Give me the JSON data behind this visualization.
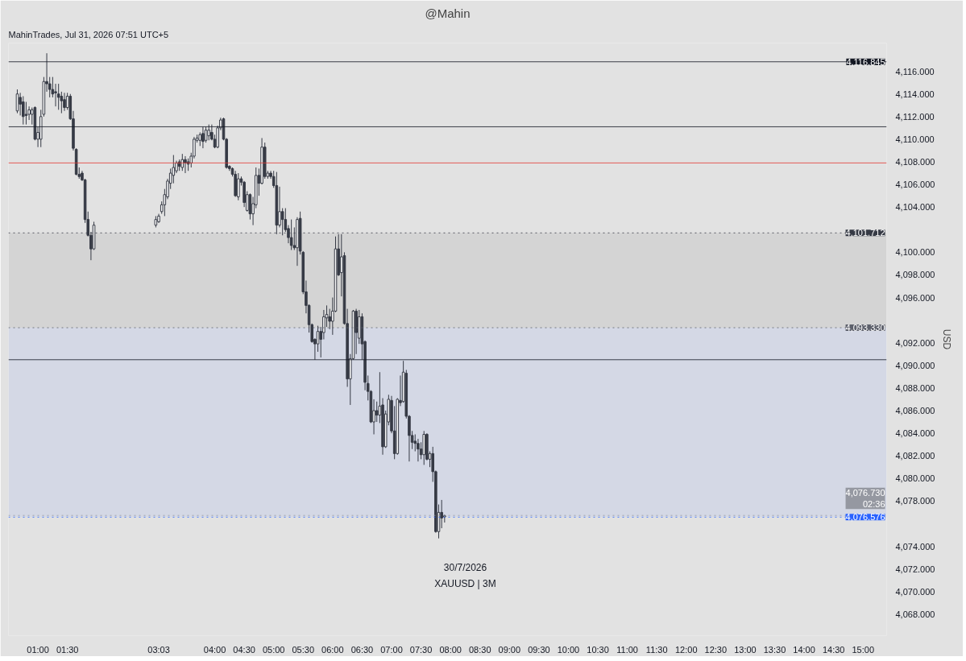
{
  "chart_data": {
    "type": "candlestick",
    "title": "@Mahin",
    "ylabel": "USD",
    "annotations": [
      "MahinTrades, Jul 31, 2026 07:51 UTC+5",
      "30/7/2026",
      "XAUUSD | 3M"
    ],
    "x": [
      0.65,
      0.7,
      0.75,
      0.8,
      0.85,
      0.9,
      0.95,
      1.0,
      1.05,
      1.1,
      1.15,
      1.2,
      1.25,
      1.3,
      1.35,
      1.4,
      1.45,
      1.5,
      1.55,
      1.6,
      1.65,
      1.7,
      1.75,
      1.8,
      1.85,
      1.9,
      1.95,
      3.0,
      3.05,
      3.1,
      3.15,
      3.2,
      3.25,
      3.3,
      3.35,
      3.4,
      3.45,
      3.5,
      3.55,
      3.6,
      3.65,
      3.7,
      3.75,
      3.8,
      3.85,
      3.9,
      3.95,
      4.0,
      4.05,
      4.1,
      4.15,
      4.2,
      4.25,
      4.3,
      4.35,
      4.4,
      4.45,
      4.5,
      4.55,
      4.6,
      4.65,
      4.7,
      4.75,
      4.8,
      4.85,
      4.9,
      4.95,
      5.0,
      5.05,
      5.1,
      5.15,
      5.2,
      5.25,
      5.3,
      5.35,
      5.4,
      5.45,
      5.5,
      5.55,
      5.6,
      5.65,
      5.7,
      5.75,
      5.8,
      5.85,
      5.9,
      5.95,
      6.0,
      6.05,
      6.1,
      6.15,
      6.2,
      6.25,
      6.3,
      6.35,
      6.4,
      6.45,
      6.5,
      6.55,
      6.6,
      6.65,
      6.7,
      6.75,
      6.8,
      6.85,
      6.9,
      6.95,
      7.0,
      7.05,
      7.1,
      7.15,
      7.2,
      7.25,
      7.3,
      7.35,
      7.4,
      7.45,
      7.5,
      7.55,
      7.6,
      7.65,
      7.7,
      7.75,
      7.8,
      7.85,
      7.9
    ],
    "ohlc": [
      [
        4112.5,
        4114.4,
        4112.3,
        4114.0
      ],
      [
        4113.7,
        4114.1,
        4112.1,
        4113.1
      ],
      [
        4113.3,
        4113.8,
        4111.3,
        4112.0
      ],
      [
        4112.2,
        4113.3,
        4111.3,
        4112.1
      ],
      [
        4112.2,
        4112.9,
        4111.7,
        4112.6
      ],
      [
        4112.2,
        4112.8,
        4111.3,
        4112.6
      ],
      [
        4112.8,
        4112.9,
        4109.9,
        4110.0
      ],
      [
        4110.0,
        4111.1,
        4109.3,
        4110.6
      ],
      [
        4110.0,
        4112.6,
        4109.3,
        4112.0
      ],
      [
        4112.2,
        4115.5,
        4112.0,
        4115.1
      ],
      [
        4115.1,
        4117.6,
        4114.2,
        4114.9
      ],
      [
        4114.9,
        4115.5,
        4113.7,
        4114.4
      ],
      [
        4114.4,
        4115.5,
        4113.7,
        4114.0
      ],
      [
        4114.2,
        4114.9,
        4112.9,
        4114.1
      ],
      [
        4114.0,
        4114.9,
        4112.6,
        4113.7
      ],
      [
        4113.8,
        4114.2,
        4112.3,
        4113.4
      ],
      [
        4113.5,
        4114.1,
        4112.5,
        4112.8
      ],
      [
        4112.8,
        4114.1,
        4112.6,
        4113.8
      ],
      [
        4113.8,
        4114.0,
        4111.7,
        4111.8
      ],
      [
        4111.8,
        4112.5,
        4109.0,
        4109.2
      ],
      [
        4109.1,
        4109.2,
        4106.8,
        4106.9
      ],
      [
        4106.9,
        4107.5,
        4106.5,
        4106.7
      ],
      [
        4107.0,
        4107.2,
        4106.3,
        4106.4
      ],
      [
        4106.4,
        4106.5,
        4102.6,
        4102.9
      ],
      [
        4102.9,
        4103.6,
        4101.4,
        4101.5
      ],
      [
        4101.5,
        4101.8,
        4099.3,
        4100.3
      ],
      [
        4100.3,
        4102.7,
        4100.2,
        4102.4
      ],
      [
        4102.4,
        4103.2,
        4102.2,
        4102.9
      ],
      [
        4102.7,
        4103.4,
        4102.6,
        4103.2
      ],
      [
        4103.6,
        4104.5,
        4103.4,
        4104.2
      ],
      [
        4104.2,
        4105.6,
        4103.2,
        4105.1
      ],
      [
        4104.9,
        4106.5,
        4104.7,
        4106.3
      ],
      [
        4106.1,
        4107.4,
        4105.6,
        4107.0
      ],
      [
        4106.8,
        4108.6,
        4106.1,
        4107.5
      ],
      [
        4107.2,
        4108.1,
        4107.0,
        4107.9
      ],
      [
        4108.0,
        4108.2,
        4107.2,
        4107.6
      ],
      [
        4107.5,
        4108.7,
        4107.2,
        4108.2
      ],
      [
        4108.2,
        4108.5,
        4107.0,
        4107.9
      ],
      [
        4108.0,
        4108.3,
        4107.2,
        4107.8
      ],
      [
        4107.9,
        4108.8,
        4107.5,
        4108.5
      ],
      [
        4108.5,
        4110.2,
        4108.3,
        4110.0
      ],
      [
        4109.9,
        4110.4,
        4109.7,
        4110.1
      ],
      [
        4109.9,
        4110.6,
        4109.4,
        4110.4
      ],
      [
        4110.5,
        4111.1,
        4109.2,
        4109.8
      ],
      [
        4109.9,
        4111.1,
        4109.7,
        4110.8
      ],
      [
        4110.3,
        4111.3,
        4109.9,
        4110.8
      ],
      [
        4110.6,
        4111.3,
        4109.9,
        4110.0
      ],
      [
        4110.0,
        4110.4,
        4109.2,
        4109.3
      ],
      [
        4109.3,
        4111.2,
        4109.2,
        4111.0
      ],
      [
        4111.0,
        4111.9,
        4110.8,
        4111.7
      ],
      [
        4111.8,
        4111.9,
        4109.9,
        4110.0
      ],
      [
        4110.0,
        4110.1,
        4107.4,
        4107.5
      ],
      [
        4107.6,
        4107.7,
        4107.2,
        4107.4
      ],
      [
        4107.4,
        4107.5,
        4106.7,
        4106.9
      ],
      [
        4106.9,
        4107.2,
        4104.9,
        4105.0
      ],
      [
        4104.9,
        4107.0,
        4104.6,
        4106.5
      ],
      [
        4106.5,
        4106.7,
        4105.9,
        4106.2
      ],
      [
        4106.2,
        4106.3,
        4104.0,
        4104.4
      ],
      [
        4103.7,
        4105.4,
        4103.6,
        4105.1
      ],
      [
        4105.1,
        4105.2,
        4102.9,
        4103.4
      ],
      [
        4103.4,
        4104.9,
        4102.4,
        4104.3
      ],
      [
        4104.2,
        4107.5,
        4103.9,
        4106.8
      ],
      [
        4106.8,
        4107.4,
        4105.0,
        4106.1
      ],
      [
        4106.1,
        4110.1,
        4106.0,
        4109.3
      ],
      [
        4109.3,
        4109.7,
        4106.5,
        4106.7
      ],
      [
        4106.7,
        4107.2,
        4106.5,
        4107.0
      ],
      [
        4107.0,
        4107.2,
        4106.5,
        4106.7
      ],
      [
        4106.7,
        4107.2,
        4105.7,
        4105.9
      ],
      [
        4105.9,
        4107.1,
        4101.6,
        4102.4
      ],
      [
        4102.4,
        4105.8,
        4102.2,
        4103.6
      ],
      [
        4103.6,
        4103.9,
        4101.5,
        4102.9
      ],
      [
        4102.9,
        4103.9,
        4101.8,
        4102.0
      ],
      [
        4102.1,
        4102.4,
        4100.8,
        4101.3
      ],
      [
        4101.3,
        4102.9,
        4100.2,
        4100.6
      ],
      [
        4100.6,
        4102.2,
        4100.2,
        4100.4
      ],
      [
        4100.4,
        4103.1,
        4098.8,
        4102.9
      ],
      [
        4103.0,
        4103.6,
        4099.8,
        4100.1
      ],
      [
        4100.0,
        4100.1,
        4096.3,
        4096.5
      ],
      [
        4096.5,
        4097.5,
        4094.6,
        4095.3
      ],
      [
        4095.3,
        4095.4,
        4092.9,
        4093.6
      ],
      [
        4093.6,
        4093.7,
        4092.0,
        4092.1
      ],
      [
        4092.3,
        4092.4,
        4090.5,
        4091.9
      ],
      [
        4091.9,
        4093.5,
        4091.2,
        4093.0
      ],
      [
        4093.0,
        4093.4,
        4090.7,
        4092.3
      ],
      [
        4092.9,
        4094.9,
        4092.3,
        4094.3
      ],
      [
        4094.2,
        4095.3,
        4093.4,
        4094.5
      ],
      [
        4094.3,
        4095.0,
        4093.2,
        4093.9
      ],
      [
        4093.9,
        4096.0,
        4092.7,
        4094.8
      ],
      [
        4094.8,
        4101.4,
        4094.7,
        4100.3
      ],
      [
        4100.3,
        4101.6,
        4097.9,
        4098.0
      ],
      [
        4098.2,
        4101.6,
        4096.1,
        4099.6
      ],
      [
        4099.7,
        4100.0,
        4093.6,
        4093.7
      ],
      [
        4093.7,
        4095.0,
        4088.1,
        4088.8
      ],
      [
        4088.8,
        4091.0,
        4086.5,
        4090.6
      ],
      [
        4090.6,
        4094.9,
        4090.5,
        4094.8
      ],
      [
        4094.8,
        4095.0,
        4091.0,
        4092.9
      ],
      [
        4092.4,
        4094.9,
        4091.9,
        4094.3
      ],
      [
        4094.3,
        4094.6,
        4090.5,
        4091.9
      ],
      [
        4092.1,
        4092.2,
        4087.8,
        4088.5
      ],
      [
        4088.4,
        4089.1,
        4086.9,
        4087.7
      ],
      [
        4087.7,
        4087.8,
        4084.9,
        4085.0
      ],
      [
        4085.0,
        4087.0,
        4083.9,
        4086.0
      ],
      [
        4086.0,
        4086.8,
        4085.0,
        4085.6
      ],
      [
        4085.6,
        4089.4,
        4084.9,
        4086.4
      ],
      [
        4086.5,
        4087.1,
        4082.1,
        4082.8
      ],
      [
        4082.8,
        4086.0,
        4082.7,
        4085.7
      ],
      [
        4085.0,
        4087.4,
        4084.7,
        4087.0
      ],
      [
        4086.9,
        4087.3,
        4084.0,
        4084.2
      ],
      [
        4084.2,
        4086.4,
        4081.7,
        4082.2
      ],
      [
        4082.2,
        4087.1,
        4082.1,
        4087.0
      ],
      [
        4086.9,
        4089.1,
        4086.4,
        4086.7
      ],
      [
        4086.8,
        4090.4,
        4086.7,
        4089.4
      ],
      [
        4089.3,
        4089.6,
        4085.3,
        4085.5
      ],
      [
        4085.5,
        4085.6,
        4081.5,
        4083.8
      ],
      [
        4083.8,
        4084.2,
        4082.6,
        4083.2
      ],
      [
        4083.3,
        4083.9,
        4082.4,
        4083.1
      ],
      [
        4083.1,
        4083.5,
        4081.5,
        4082.6
      ],
      [
        4082.6,
        4083.2,
        4081.7,
        4082.1
      ],
      [
        4082.1,
        4084.2,
        4081.2,
        4083.9
      ],
      [
        4083.9,
        4084.0,
        4081.6,
        4081.7
      ],
      [
        4081.7,
        4082.4,
        4081.0,
        4082.2
      ],
      [
        4082.2,
        4082.8,
        4079.7,
        4080.6
      ],
      [
        4080.6,
        4080.7,
        4075.2,
        4075.3
      ],
      [
        4075.3,
        4077.7,
        4074.7,
        4077.0
      ],
      [
        4077.0,
        4078.1,
        4075.6,
        4076.5
      ],
      [
        4076.6,
        4076.8,
        4076.1,
        4076.7
      ]
    ],
    "xlim": [
      0.5,
      15.4
    ],
    "xticks": [
      {
        "value": 1,
        "label": "01:00"
      },
      {
        "value": 1.5,
        "label": "01:30"
      },
      {
        "value": 3.05,
        "label": "03:03"
      },
      {
        "value": 4,
        "label": "04:00"
      },
      {
        "value": 4.5,
        "label": "04:30"
      },
      {
        "value": 5,
        "label": "05:00"
      },
      {
        "value": 5.5,
        "label": "05:30"
      },
      {
        "value": 6,
        "label": "06:00"
      },
      {
        "value": 6.5,
        "label": "06:30"
      },
      {
        "value": 7,
        "label": "07:00"
      },
      {
        "value": 7.5,
        "label": "07:30"
      },
      {
        "value": 8,
        "label": "08:00"
      },
      {
        "value": 8.5,
        "label": "08:30"
      },
      {
        "value": 9,
        "label": "09:00"
      },
      {
        "value": 9.5,
        "label": "09:30"
      },
      {
        "value": 10,
        "label": "10:00"
      },
      {
        "value": 10.5,
        "label": "10:30"
      },
      {
        "value": 11,
        "label": "11:00"
      },
      {
        "value": 11.5,
        "label": "11:30"
      },
      {
        "value": 12,
        "label": "12:00"
      },
      {
        "value": 12.5,
        "label": "12:30"
      },
      {
        "value": 13,
        "label": "13:00"
      },
      {
        "value": 13.5,
        "label": "13:30"
      },
      {
        "value": 14,
        "label": "14:00"
      },
      {
        "value": 14.5,
        "label": "14:30"
      },
      {
        "value": 15,
        "label": "15:00"
      }
    ],
    "ylim": [
      4066.1,
      4118.5
    ],
    "yticks": [
      {
        "value": 4068,
        "label": "4,068.000"
      },
      {
        "value": 4070,
        "label": "4,070.000"
      },
      {
        "value": 4072,
        "label": "4,072.000"
      },
      {
        "value": 4074,
        "label": "4,074.000"
      },
      {
        "value": 4078,
        "label": "4,078.000"
      },
      {
        "value": 4080,
        "label": "4,080.000"
      },
      {
        "value": 4082,
        "label": "4,082.000"
      },
      {
        "value": 4084,
        "label": "4,084.000"
      },
      {
        "value": 4086,
        "label": "4,086.000"
      },
      {
        "value": 4088,
        "label": "4,088.000"
      },
      {
        "value": 4090,
        "label": "4,090.000"
      },
      {
        "value": 4092,
        "label": "4,092.000"
      },
      {
        "value": 4096,
        "label": "4,096.000"
      },
      {
        "value": 4098,
        "label": "4,098.000"
      },
      {
        "value": 4100,
        "label": "4,100.000"
      },
      {
        "value": 4104,
        "label": "4,104.000"
      },
      {
        "value": 4106,
        "label": "4,106.000"
      },
      {
        "value": 4108,
        "label": "4,108.000"
      },
      {
        "value": 4110,
        "label": "4,110.000"
      },
      {
        "value": 4112,
        "label": "4,112.000"
      },
      {
        "value": 4114,
        "label": "4,114.000"
      },
      {
        "value": 4116,
        "label": "4,116.000"
      }
    ],
    "ref_lines": [
      {
        "axis": "y",
        "value": 4116.845,
        "label": "4,116.845",
        "color": "#131722",
        "line_style": "solid"
      },
      {
        "axis": "y",
        "value": 4101.712,
        "label": "4,101.712",
        "color": "#363a45",
        "line_style": "dotted"
      },
      {
        "axis": "y",
        "value": 4093.33,
        "label": "4,093.330",
        "color": "#5d606b",
        "line_style": "dotted"
      },
      {
        "axis": "y",
        "value": 4076.73,
        "label": "4,076.730\n02:36",
        "color": "#9598a1",
        "line_style": "dotted"
      },
      {
        "axis": "y",
        "value": 4076.576,
        "label": "4,076.576",
        "color": "#2962ff",
        "line_style": "dotted"
      },
      {
        "axis": "y",
        "value": 4111.1,
        "label": null,
        "color": "#131722",
        "line_style": "solid"
      },
      {
        "axis": "y",
        "value": 4107.9,
        "label": null,
        "color": "#e53935",
        "line_style": "solid"
      },
      {
        "axis": "y",
        "value": 4090.5,
        "label": null,
        "color": "#131722",
        "line_style": "solid"
      }
    ],
    "bands": [
      {
        "axis": "y",
        "from": 4093.33,
        "to": 4101.712,
        "color": "#c4c4c4"
      },
      {
        "axis": "y",
        "from": 4076.576,
        "to": 4093.33,
        "color": "#c3cbe8"
      }
    ]
  }
}
